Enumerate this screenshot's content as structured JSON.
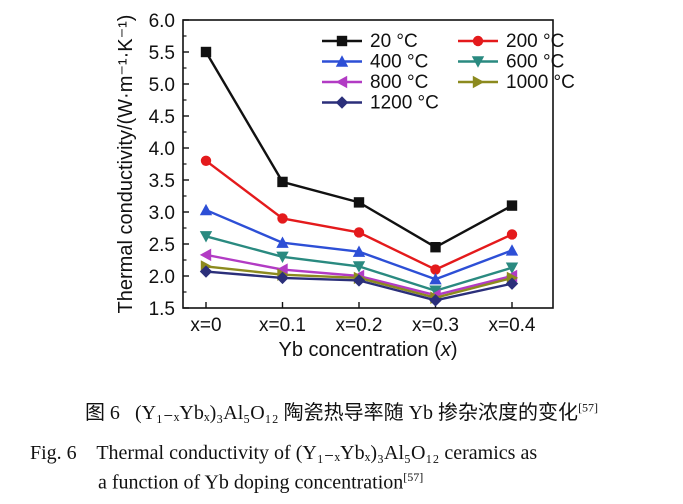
{
  "chart_data": {
    "type": "line",
    "categories": [
      "x=0",
      "x=0.1",
      "x=0.2",
      "x=0.3",
      "x=0.4"
    ],
    "ylabel": "Thermal conductivity/(W·m⁻¹·K⁻¹)",
    "xlabel": "Yb concentration (x)",
    "ylim": [
      1.5,
      6.0
    ],
    "yticks": [
      "1.5",
      "2.0",
      "2.5",
      "3.0",
      "3.5",
      "4.0",
      "4.5",
      "5.0",
      "5.5",
      "6.0"
    ],
    "legend_position": "top-right",
    "series": [
      {
        "name": "20 °C",
        "color": "#111111",
        "marker": "square",
        "values": [
          5.5,
          3.47,
          3.15,
          2.45,
          3.1
        ]
      },
      {
        "name": "200 °C",
        "color": "#e41a1c",
        "marker": "circle",
        "values": [
          3.8,
          2.9,
          2.68,
          2.1,
          2.65
        ]
      },
      {
        "name": "400 °C",
        "color": "#2d4fd6",
        "marker": "triangle-up",
        "values": [
          3.03,
          2.52,
          2.38,
          1.95,
          2.4
        ]
      },
      {
        "name": "600 °C",
        "color": "#2a8a80",
        "marker": "triangle-down",
        "values": [
          2.62,
          2.3,
          2.15,
          1.77,
          2.13
        ]
      },
      {
        "name": "800 °C",
        "color": "#b23bc4",
        "marker": "triangle-left",
        "values": [
          2.33,
          2.1,
          2.0,
          1.7,
          2.0
        ]
      },
      {
        "name": "1000 °C",
        "color": "#8c8a1e",
        "marker": "triangle-right",
        "values": [
          2.15,
          2.02,
          1.97,
          1.66,
          1.97
        ]
      },
      {
        "name": "1200 °C",
        "color": "#2b2f7a",
        "marker": "diamond",
        "values": [
          2.07,
          1.97,
          1.93,
          1.62,
          1.88
        ]
      }
    ]
  },
  "caption": {
    "cn_prefix": "图 6",
    "cn_text": "(Y₁₋ₓYbₓ)₃Al₅O₁₂ 陶瓷热导率随 Yb 掺杂浓度的变化",
    "cn_ref": "[57]",
    "en_prefix": "Fig. 6",
    "en_line1": "Thermal conductivity of (Y₁₋ₓYbₓ)₃Al₅O₁₂ ceramics as",
    "en_line2": "a function of Yb doping concentration",
    "en_ref": "[57]"
  }
}
